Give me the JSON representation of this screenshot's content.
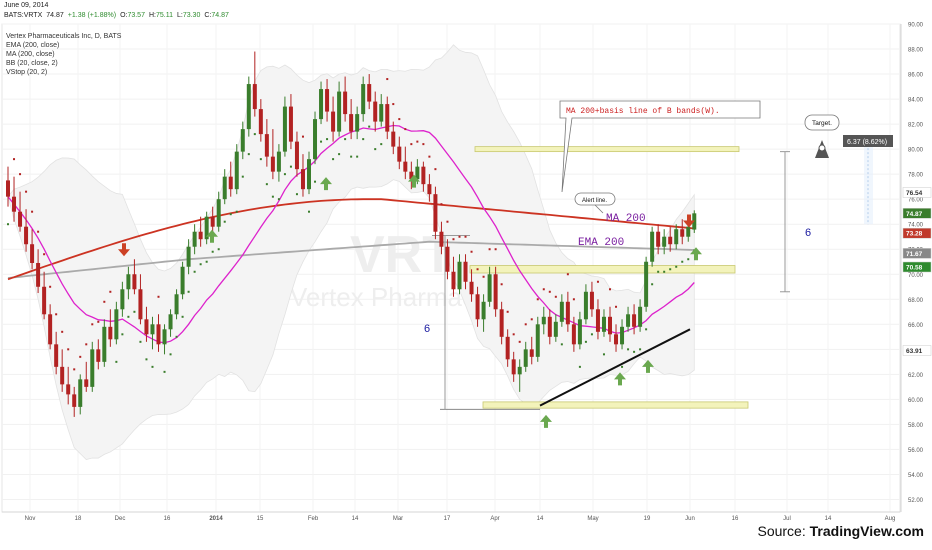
{
  "header": {
    "date": "June 09, 2014",
    "symbol": "BATS:VRTX",
    "last": "74.87",
    "change": "+1.38 (+1.88%)",
    "o_label": "O:",
    "open": "73.57",
    "h_label": "H:",
    "high": "75.11",
    "l_label": "L:",
    "low": "73.30",
    "c_label": "C:",
    "close": "74.87"
  },
  "indicators": {
    "company": "Vertex Pharmaceuticals Inc, D, BATS",
    "ema": "EMA (200, close)",
    "ma": "MA (200, close)",
    "bb": "BB (20, close, 2)",
    "vstop": "VStop (20, 2)"
  },
  "watermark": {
    "ticker": "VRTX",
    "name": "Vertex Pharmac"
  },
  "annotations": {
    "ma_callout": "MA 200+basis line of B bands(W).",
    "alert": "Alert line.",
    "target": "Target.",
    "target_value": "6.37 (8.62%)",
    "ma200": "MA 200",
    "ema200": "EMA 200",
    "six_left": "6",
    "six_right": "6"
  },
  "source": {
    "prefix": "Source: ",
    "brand": "TradingView.com"
  },
  "colors": {
    "up": "#3a7d2c",
    "down": "#b22222",
    "ma": "#cc3322",
    "ema": "#aaaaaa",
    "bb_basis": "#dd22cc",
    "band": "#f3f3bb",
    "band_border": "#c8c870",
    "arrow_up": "#6aa84f",
    "arrow_down": "#cc4125",
    "axis_tag": "#555555"
  },
  "chart_data": {
    "type": "candlestick",
    "ylim": [
      51,
      90
    ],
    "y_ticks": [
      52,
      54,
      56,
      58,
      60,
      62,
      64,
      66,
      68,
      70,
      72,
      74,
      76,
      78,
      80,
      82,
      84,
      86,
      88,
      90
    ],
    "x_tick_labels": [
      "Nov",
      "18",
      "Dec",
      "16",
      "2014",
      "15",
      "Feb",
      "14",
      "Mar",
      "17",
      "Apr",
      "14",
      "May",
      "19",
      "Jun",
      "16",
      "Jul",
      "14",
      "Aug"
    ],
    "price_tags": [
      "76.54",
      "74.87",
      "73.28",
      "71.67",
      "70.58",
      "63.91"
    ],
    "candles": [
      {
        "o": 77.5,
        "h": 78.6,
        "l": 75.4,
        "c": 76.2
      },
      {
        "o": 76.2,
        "h": 77.8,
        "l": 74.2,
        "c": 75.0
      },
      {
        "o": 75.0,
        "h": 76.6,
        "l": 73.4,
        "c": 73.8
      },
      {
        "o": 73.8,
        "h": 75.2,
        "l": 71.8,
        "c": 72.4
      },
      {
        "o": 72.4,
        "h": 73.6,
        "l": 70.4,
        "c": 70.9
      },
      {
        "o": 70.9,
        "h": 72.0,
        "l": 68.5,
        "c": 69.0
      },
      {
        "o": 69.0,
        "h": 70.2,
        "l": 66.4,
        "c": 66.8
      },
      {
        "o": 66.8,
        "h": 67.6,
        "l": 64.0,
        "c": 64.4
      },
      {
        "o": 64.4,
        "h": 65.4,
        "l": 62.0,
        "c": 62.6
      },
      {
        "o": 62.6,
        "h": 64.0,
        "l": 60.6,
        "c": 61.2
      },
      {
        "o": 61.2,
        "h": 62.6,
        "l": 59.6,
        "c": 60.4
      },
      {
        "o": 60.4,
        "h": 61.0,
        "l": 58.6,
        "c": 59.4
      },
      {
        "o": 59.4,
        "h": 62.0,
        "l": 58.8,
        "c": 61.6
      },
      {
        "o": 61.6,
        "h": 63.0,
        "l": 60.6,
        "c": 61.0
      },
      {
        "o": 61.0,
        "h": 64.6,
        "l": 60.6,
        "c": 64.0
      },
      {
        "o": 64.0,
        "h": 64.8,
        "l": 62.4,
        "c": 63.0
      },
      {
        "o": 63.0,
        "h": 66.4,
        "l": 62.6,
        "c": 65.8
      },
      {
        "o": 65.8,
        "h": 67.2,
        "l": 64.2,
        "c": 64.8
      },
      {
        "o": 64.8,
        "h": 67.8,
        "l": 64.4,
        "c": 67.2
      },
      {
        "o": 67.2,
        "h": 69.4,
        "l": 66.6,
        "c": 68.8
      },
      {
        "o": 68.8,
        "h": 70.6,
        "l": 68.0,
        "c": 70.0
      },
      {
        "o": 70.0,
        "h": 71.2,
        "l": 68.4,
        "c": 68.8
      },
      {
        "o": 68.8,
        "h": 70.0,
        "l": 66.0,
        "c": 66.4
      },
      {
        "o": 66.4,
        "h": 67.4,
        "l": 64.6,
        "c": 65.2
      },
      {
        "o": 65.2,
        "h": 66.6,
        "l": 64.0,
        "c": 66.0
      },
      {
        "o": 66.0,
        "h": 66.8,
        "l": 63.8,
        "c": 64.4
      },
      {
        "o": 64.4,
        "h": 66.0,
        "l": 63.6,
        "c": 65.6
      },
      {
        "o": 65.6,
        "h": 67.2,
        "l": 65.0,
        "c": 66.8
      },
      {
        "o": 66.8,
        "h": 68.8,
        "l": 66.4,
        "c": 68.4
      },
      {
        "o": 68.4,
        "h": 71.0,
        "l": 68.0,
        "c": 70.6
      },
      {
        "o": 70.6,
        "h": 72.8,
        "l": 70.0,
        "c": 72.2
      },
      {
        "o": 72.2,
        "h": 74.0,
        "l": 71.6,
        "c": 73.4
      },
      {
        "o": 73.4,
        "h": 74.6,
        "l": 72.2,
        "c": 72.8
      },
      {
        "o": 72.8,
        "h": 75.0,
        "l": 72.4,
        "c": 74.6
      },
      {
        "o": 74.6,
        "h": 75.4,
        "l": 73.2,
        "c": 73.8
      },
      {
        "o": 73.8,
        "h": 76.6,
        "l": 73.4,
        "c": 76.0
      },
      {
        "o": 76.0,
        "h": 78.4,
        "l": 75.6,
        "c": 77.8
      },
      {
        "o": 77.8,
        "h": 79.0,
        "l": 76.2,
        "c": 76.8
      },
      {
        "o": 76.8,
        "h": 80.4,
        "l": 76.4,
        "c": 79.8
      },
      {
        "o": 79.8,
        "h": 82.2,
        "l": 79.2,
        "c": 81.6
      },
      {
        "o": 81.6,
        "h": 85.8,
        "l": 81.0,
        "c": 85.2
      },
      {
        "o": 85.2,
        "h": 87.8,
        "l": 82.6,
        "c": 83.2
      },
      {
        "o": 83.2,
        "h": 84.0,
        "l": 80.6,
        "c": 81.2
      },
      {
        "o": 81.2,
        "h": 82.4,
        "l": 78.6,
        "c": 79.4
      },
      {
        "o": 79.4,
        "h": 81.6,
        "l": 77.6,
        "c": 78.2
      },
      {
        "o": 78.2,
        "h": 80.4,
        "l": 77.4,
        "c": 79.8
      },
      {
        "o": 79.8,
        "h": 84.2,
        "l": 79.4,
        "c": 83.4
      },
      {
        "o": 83.4,
        "h": 84.4,
        "l": 80.0,
        "c": 80.6
      },
      {
        "o": 80.6,
        "h": 81.4,
        "l": 77.8,
        "c": 78.4
      },
      {
        "o": 78.4,
        "h": 79.6,
        "l": 76.2,
        "c": 76.8
      },
      {
        "o": 76.8,
        "h": 79.8,
        "l": 76.4,
        "c": 79.2
      },
      {
        "o": 79.2,
        "h": 83.0,
        "l": 78.8,
        "c": 82.4
      },
      {
        "o": 82.4,
        "h": 85.4,
        "l": 82.0,
        "c": 84.8
      },
      {
        "o": 84.8,
        "h": 85.6,
        "l": 82.2,
        "c": 83.0
      },
      {
        "o": 83.0,
        "h": 84.2,
        "l": 80.6,
        "c": 81.4
      },
      {
        "o": 81.4,
        "h": 85.4,
        "l": 81.0,
        "c": 84.6
      },
      {
        "o": 84.6,
        "h": 85.8,
        "l": 82.2,
        "c": 82.8
      },
      {
        "o": 82.8,
        "h": 84.0,
        "l": 80.8,
        "c": 81.4
      },
      {
        "o": 81.4,
        "h": 83.4,
        "l": 80.8,
        "c": 82.8
      },
      {
        "o": 82.8,
        "h": 85.8,
        "l": 82.2,
        "c": 85.2
      },
      {
        "o": 85.2,
        "h": 86.0,
        "l": 83.2,
        "c": 83.8
      },
      {
        "o": 83.8,
        "h": 84.6,
        "l": 81.4,
        "c": 82.2
      },
      {
        "o": 82.2,
        "h": 84.4,
        "l": 81.8,
        "c": 83.6
      },
      {
        "o": 83.6,
        "h": 84.2,
        "l": 80.8,
        "c": 81.4
      },
      {
        "o": 81.4,
        "h": 82.2,
        "l": 79.6,
        "c": 80.2
      },
      {
        "o": 80.2,
        "h": 81.0,
        "l": 78.4,
        "c": 79.0
      },
      {
        "o": 79.0,
        "h": 80.2,
        "l": 77.6,
        "c": 78.2
      },
      {
        "o": 78.2,
        "h": 79.0,
        "l": 76.8,
        "c": 77.6
      },
      {
        "o": 77.6,
        "h": 79.2,
        "l": 77.2,
        "c": 78.6
      },
      {
        "o": 78.6,
        "h": 79.0,
        "l": 76.6,
        "c": 77.2
      },
      {
        "o": 77.2,
        "h": 78.0,
        "l": 75.8,
        "c": 76.4
      },
      {
        "o": 76.4,
        "h": 77.0,
        "l": 72.8,
        "c": 73.4
      },
      {
        "o": 73.4,
        "h": 74.2,
        "l": 71.6,
        "c": 72.2
      },
      {
        "o": 72.2,
        "h": 72.8,
        "l": 69.6,
        "c": 70.2
      },
      {
        "o": 70.2,
        "h": 71.4,
        "l": 68.2,
        "c": 68.8
      },
      {
        "o": 68.8,
        "h": 71.6,
        "l": 68.4,
        "c": 71.0
      },
      {
        "o": 71.0,
        "h": 71.6,
        "l": 68.8,
        "c": 69.4
      },
      {
        "o": 69.4,
        "h": 70.4,
        "l": 67.8,
        "c": 68.4
      },
      {
        "o": 68.4,
        "h": 69.0,
        "l": 65.8,
        "c": 66.4
      },
      {
        "o": 66.4,
        "h": 68.4,
        "l": 65.4,
        "c": 67.8
      },
      {
        "o": 67.8,
        "h": 70.6,
        "l": 67.4,
        "c": 70.0
      },
      {
        "o": 70.0,
        "h": 70.6,
        "l": 66.6,
        "c": 67.2
      },
      {
        "o": 67.2,
        "h": 67.8,
        "l": 64.4,
        "c": 65.0
      },
      {
        "o": 65.0,
        "h": 65.6,
        "l": 62.6,
        "c": 63.2
      },
      {
        "o": 63.2,
        "h": 63.8,
        "l": 61.4,
        "c": 62.0
      },
      {
        "o": 62.0,
        "h": 63.2,
        "l": 60.6,
        "c": 62.6
      },
      {
        "o": 62.6,
        "h": 64.6,
        "l": 62.2,
        "c": 64.0
      },
      {
        "o": 64.0,
        "h": 65.0,
        "l": 62.8,
        "c": 63.4
      },
      {
        "o": 63.4,
        "h": 66.6,
        "l": 63.0,
        "c": 66.0
      },
      {
        "o": 66.0,
        "h": 67.4,
        "l": 65.2,
        "c": 66.6
      },
      {
        "o": 66.6,
        "h": 67.2,
        "l": 64.4,
        "c": 65.0
      },
      {
        "o": 65.0,
        "h": 66.8,
        "l": 64.6,
        "c": 66.2
      },
      {
        "o": 66.2,
        "h": 68.4,
        "l": 65.8,
        "c": 67.8
      },
      {
        "o": 67.8,
        "h": 68.6,
        "l": 65.4,
        "c": 66.0
      },
      {
        "o": 66.0,
        "h": 66.6,
        "l": 63.8,
        "c": 64.4
      },
      {
        "o": 64.4,
        "h": 67.0,
        "l": 64.0,
        "c": 66.4
      },
      {
        "o": 66.4,
        "h": 69.2,
        "l": 66.0,
        "c": 68.6
      },
      {
        "o": 68.6,
        "h": 69.4,
        "l": 66.6,
        "c": 67.2
      },
      {
        "o": 67.2,
        "h": 68.0,
        "l": 64.8,
        "c": 65.4
      },
      {
        "o": 65.4,
        "h": 67.2,
        "l": 65.0,
        "c": 66.6
      },
      {
        "o": 66.6,
        "h": 67.4,
        "l": 64.6,
        "c": 65.2
      },
      {
        "o": 65.2,
        "h": 66.0,
        "l": 63.8,
        "c": 64.4
      },
      {
        "o": 64.4,
        "h": 66.4,
        "l": 64.0,
        "c": 65.8
      },
      {
        "o": 65.8,
        "h": 67.4,
        "l": 65.4,
        "c": 66.8
      },
      {
        "o": 66.8,
        "h": 67.6,
        "l": 65.2,
        "c": 65.8
      },
      {
        "o": 65.8,
        "h": 68.0,
        "l": 65.4,
        "c": 67.4
      },
      {
        "o": 67.4,
        "h": 71.4,
        "l": 67.0,
        "c": 71.0
      },
      {
        "o": 71.0,
        "h": 73.8,
        "l": 70.6,
        "c": 73.4
      },
      {
        "o": 73.4,
        "h": 74.0,
        "l": 71.6,
        "c": 72.2
      },
      {
        "o": 72.2,
        "h": 73.6,
        "l": 71.6,
        "c": 73.0
      },
      {
        "o": 73.0,
        "h": 73.8,
        "l": 71.8,
        "c": 72.4
      },
      {
        "o": 72.4,
        "h": 74.0,
        "l": 72.0,
        "c": 73.6
      },
      {
        "o": 73.6,
        "h": 74.4,
        "l": 72.4,
        "c": 73.0
      },
      {
        "o": 73.0,
        "h": 74.2,
        "l": 72.6,
        "c": 73.8
      },
      {
        "o": 73.57,
        "h": 75.11,
        "l": 73.3,
        "c": 74.87
      }
    ]
  }
}
